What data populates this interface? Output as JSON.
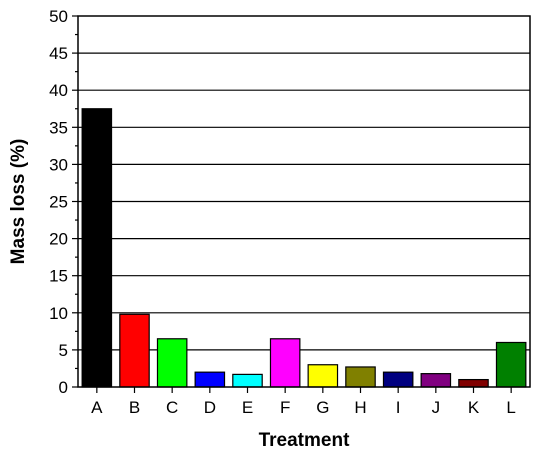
{
  "chart_data": {
    "type": "bar",
    "xlabel": "Treatment",
    "ylabel": "Mass loss (%)",
    "ylim": [
      0,
      50
    ],
    "yticks": [
      0,
      5,
      10,
      15,
      20,
      25,
      30,
      35,
      40,
      45,
      50
    ],
    "grid": true,
    "categories": [
      "A",
      "B",
      "C",
      "D",
      "E",
      "F",
      "G",
      "H",
      "I",
      "J",
      "K",
      "L"
    ],
    "values": [
      37.5,
      9.8,
      6.5,
      2.0,
      1.7,
      6.5,
      3.0,
      2.7,
      2.0,
      1.8,
      1.0,
      6.0
    ],
    "colors": [
      "#000000",
      "#ff0000",
      "#00ff00",
      "#0000ff",
      "#00ffff",
      "#ff00ff",
      "#ffff00",
      "#808000",
      "#000080",
      "#800080",
      "#800000",
      "#008000"
    ]
  }
}
